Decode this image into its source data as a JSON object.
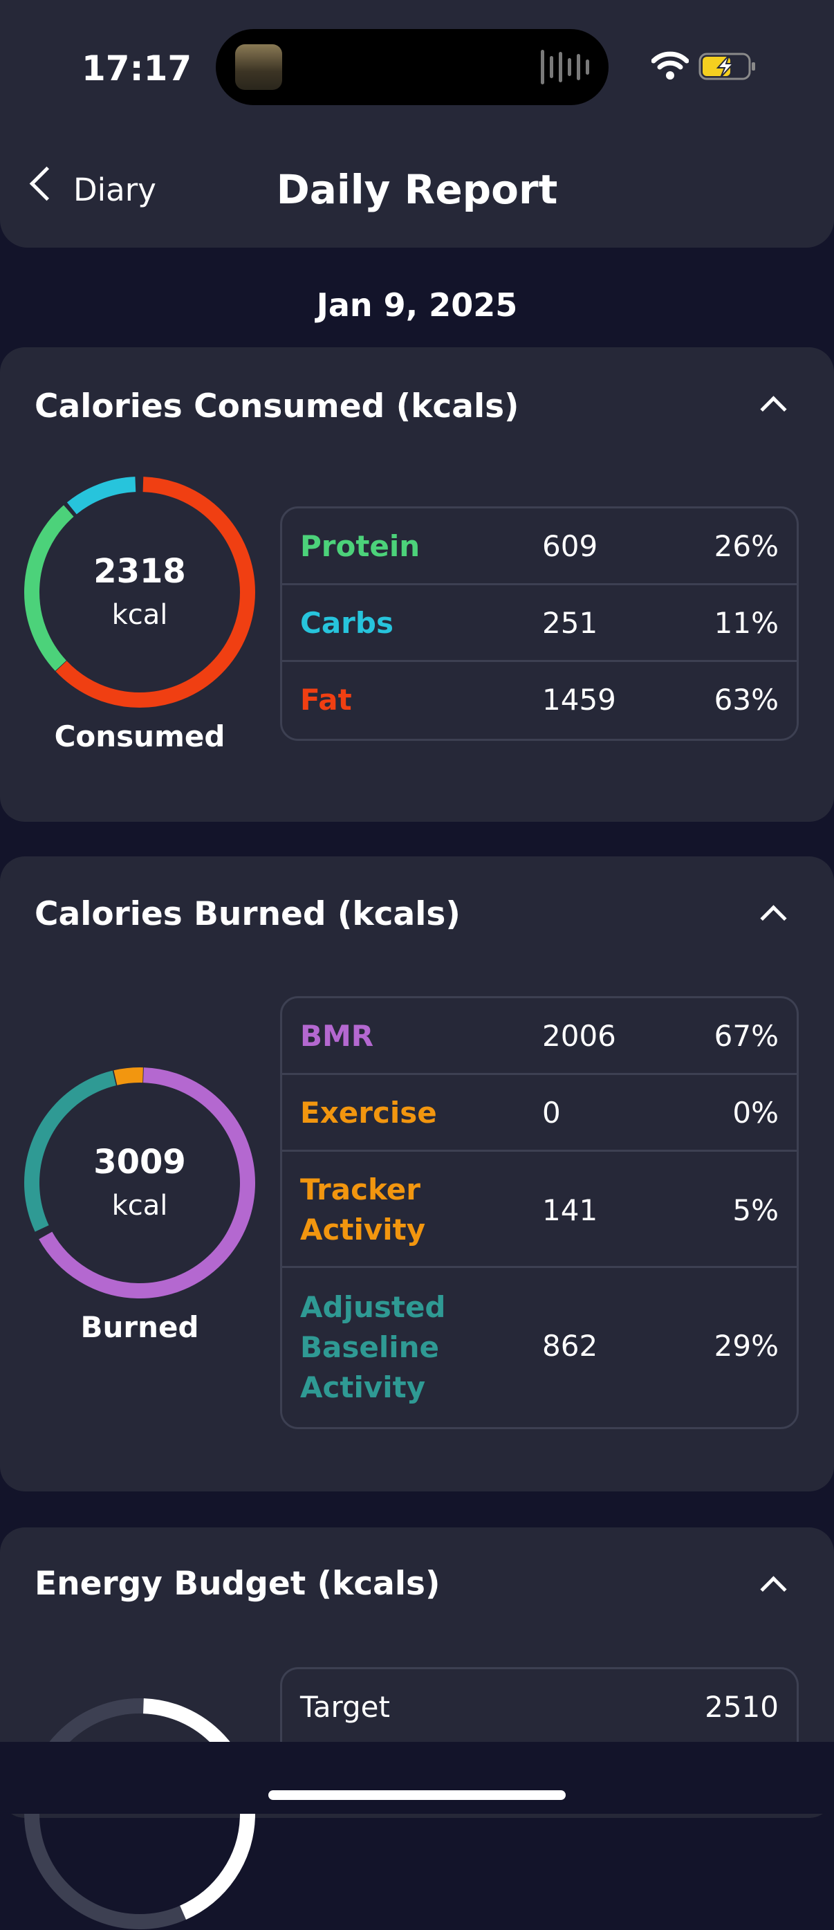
{
  "status_bar": {
    "time": "17:17"
  },
  "nav": {
    "back_label": "Diary",
    "title": "Daily Report"
  },
  "date": "Jan 9, 2025",
  "consumed": {
    "title": "Calories Consumed (kcals)",
    "total": "2318",
    "unit": "kcal",
    "caption": "Consumed",
    "rows": [
      {
        "label": "Protein",
        "value": "609",
        "percent": "26%",
        "color": "#4cd27a"
      },
      {
        "label": "Carbs",
        "value": "251",
        "percent": "11%",
        "color": "#27c4dc"
      },
      {
        "label": "Fat",
        "value": "1459",
        "percent": "63%",
        "color": "#f03f12"
      }
    ]
  },
  "burned": {
    "title": "Calories Burned (kcals)",
    "total": "3009",
    "unit": "kcal",
    "caption": "Burned",
    "rows": [
      {
        "label": "BMR",
        "value": "2006",
        "percent": "67%",
        "color": "#b468d0"
      },
      {
        "label": "Exercise",
        "value": "0",
        "percent": "0%",
        "color": "#f2960f"
      },
      {
        "label": "Tracker Activity",
        "value": "141",
        "percent": "5%",
        "color": "#f2960f"
      },
      {
        "label": "Adjusted Baseline Activity",
        "value": "862",
        "percent": "29%",
        "color": "#2f9a94"
      }
    ]
  },
  "budget": {
    "title": "Energy Budget (kcals)",
    "rows": [
      {
        "label": "Target",
        "value": "2510"
      }
    ]
  }
}
